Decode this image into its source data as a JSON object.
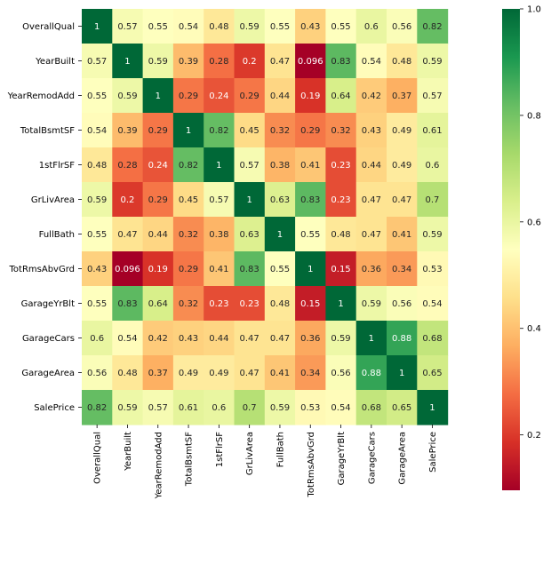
{
  "chart_data": {
    "type": "heatmap",
    "title": "",
    "xlabel": "",
    "ylabel": "",
    "colormap": "RdYlGn",
    "annotated": true,
    "labels": [
      "OverallQual",
      "YearBuilt",
      "YearRemodAdd",
      "TotalBsmtSF",
      "1stFlrSF",
      "GrLivArea",
      "FullBath",
      "TotRmsAbvGrd",
      "GarageYrBlt",
      "GarageCars",
      "GarageArea",
      "SalePrice"
    ],
    "matrix": [
      [
        1,
        0.57,
        0.55,
        0.54,
        0.48,
        0.59,
        0.55,
        0.43,
        0.55,
        0.6,
        0.56,
        0.82
      ],
      [
        0.57,
        1,
        0.59,
        0.39,
        0.28,
        0.2,
        0.47,
        0.096,
        0.83,
        0.54,
        0.48,
        0.59
      ],
      [
        0.55,
        0.59,
        1,
        0.29,
        0.24,
        0.29,
        0.44,
        0.19,
        0.64,
        0.42,
        0.37,
        0.57
      ],
      [
        0.54,
        0.39,
        0.29,
        1,
        0.82,
        0.45,
        0.32,
        0.29,
        0.32,
        0.43,
        0.49,
        0.61
      ],
      [
        0.48,
        0.28,
        0.24,
        0.82,
        1,
        0.57,
        0.38,
        0.41,
        0.23,
        0.44,
        0.49,
        0.6
      ],
      [
        0.59,
        0.2,
        0.29,
        0.45,
        0.57,
        1,
        0.63,
        0.83,
        0.23,
        0.47,
        0.47,
        0.7
      ],
      [
        0.55,
        0.47,
        0.44,
        0.32,
        0.38,
        0.63,
        1,
        0.55,
        0.48,
        0.47,
        0.41,
        0.59
      ],
      [
        0.43,
        0.096,
        0.19,
        0.29,
        0.41,
        0.83,
        0.55,
        1,
        0.15,
        0.36,
        0.34,
        0.53
      ],
      [
        0.55,
        0.83,
        0.64,
        0.32,
        0.23,
        0.23,
        0.48,
        0.15,
        1,
        0.59,
        0.56,
        0.54
      ],
      [
        0.6,
        0.54,
        0.42,
        0.43,
        0.44,
        0.47,
        0.47,
        0.36,
        0.59,
        1,
        0.88,
        0.68
      ],
      [
        0.56,
        0.48,
        0.37,
        0.49,
        0.49,
        0.47,
        0.41,
        0.34,
        0.56,
        0.88,
        1,
        0.65
      ],
      [
        0.82,
        0.59,
        0.57,
        0.61,
        0.6,
        0.7,
        0.59,
        0.53,
        0.54,
        0.68,
        0.65,
        1
      ]
    ],
    "colorbar": {
      "range": [
        0.096,
        1
      ],
      "ticks": [
        "0.2",
        "0.4",
        "0.6",
        "0.8",
        "1.0"
      ],
      "tick_values": [
        0.2,
        0.4,
        0.6,
        0.8,
        1.0
      ]
    }
  }
}
